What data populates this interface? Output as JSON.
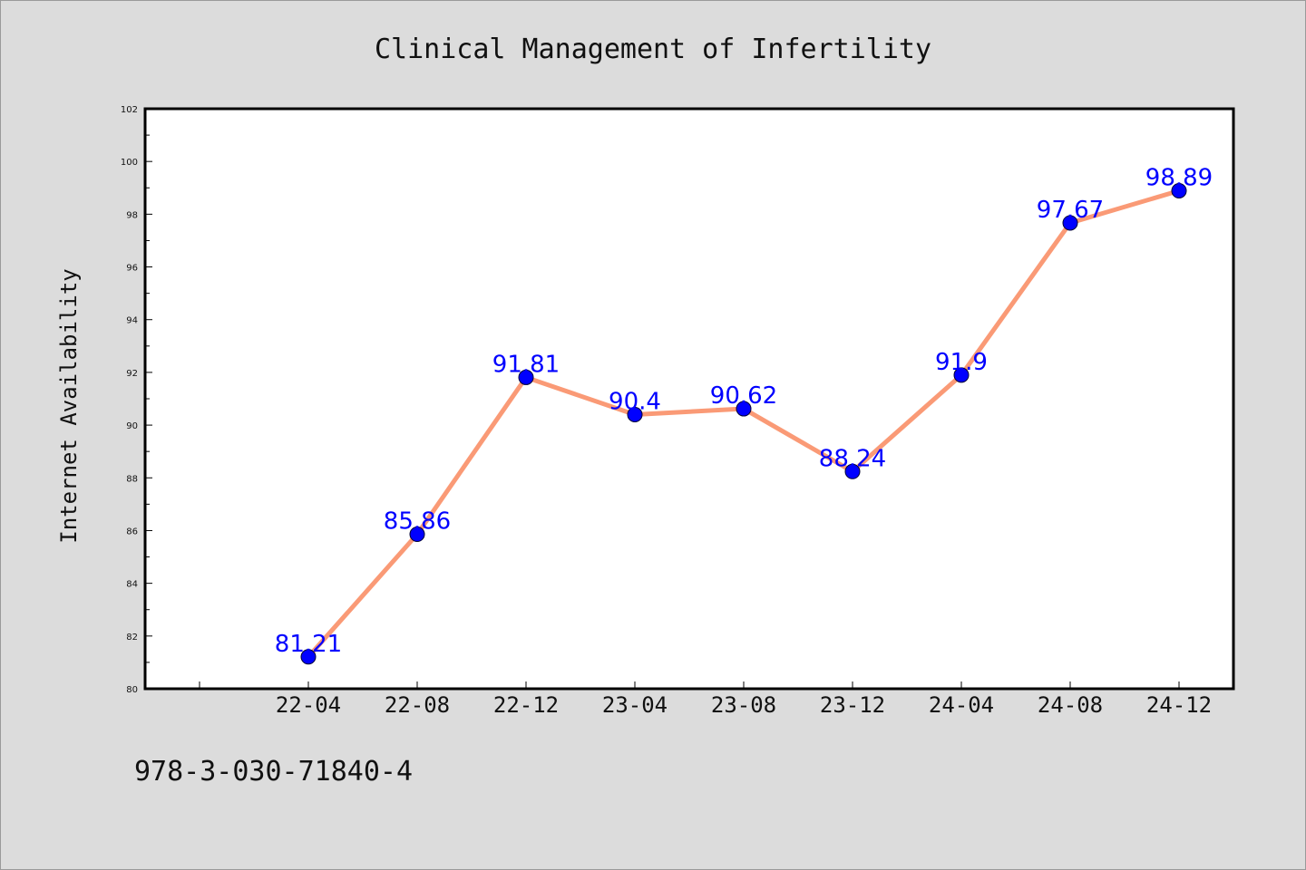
{
  "footer": {
    "isbn": "978-3-030-71840-4"
  },
  "colors": {
    "line": "#fa9a76",
    "marker": "#0000ff",
    "label": "#0000ff",
    "background": "#dcdcdc",
    "plot_bg": "#ffffff"
  },
  "chart_data": {
    "type": "line",
    "title": "Clinical Management of Infertility",
    "xlabel": "",
    "ylabel": "Internet Availability",
    "categories": [
      "22-04",
      "22-08",
      "22-12",
      "23-04",
      "23-08",
      "23-12",
      "24-04",
      "24-08",
      "24-12"
    ],
    "series": [
      {
        "values": [
          81.21,
          85.86,
          91.81,
          90.4,
          90.62,
          88.24,
          91.9,
          97.67,
          98.89
        ],
        "labels": [
          "81.21",
          "85.86",
          "91.81",
          "90.4",
          "90.62",
          "88.24",
          "91.9",
          "97.67",
          "98.89"
        ]
      }
    ],
    "ylim": [
      80,
      102
    ],
    "yticks": [
      "80",
      "82",
      "84",
      "86",
      "88",
      "90",
      "92",
      "94",
      "96",
      "98",
      "100",
      "102"
    ],
    "grid": false,
    "legend": "none"
  }
}
